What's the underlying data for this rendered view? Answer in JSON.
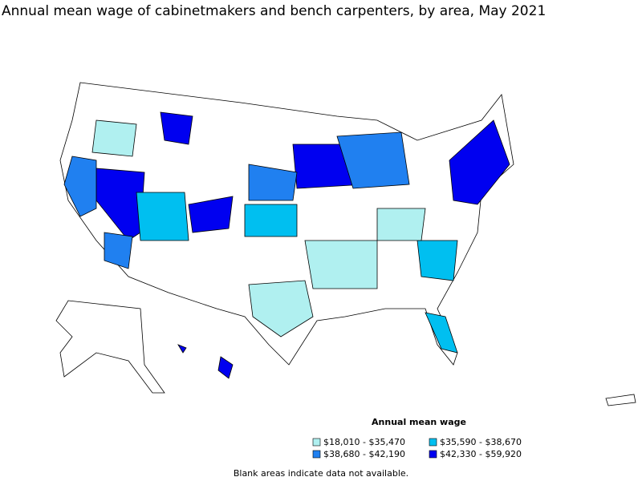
{
  "title": "Annual mean wage of cabinetmakers and bench carpenters, by area, May 2021",
  "legend": {
    "title": "Annual mean wage",
    "items": [
      {
        "label": "$18,010 - $35,470",
        "color": "#b0f0f0"
      },
      {
        "label": "$35,590 - $38,670",
        "color": "#00bff0"
      },
      {
        "label": "$38,680 - $42,190",
        "color": "#2080f0"
      },
      {
        "label": "$42,330 - $59,920",
        "color": "#0000f0"
      }
    ]
  },
  "footnote": "Blank areas indicate data not available."
}
